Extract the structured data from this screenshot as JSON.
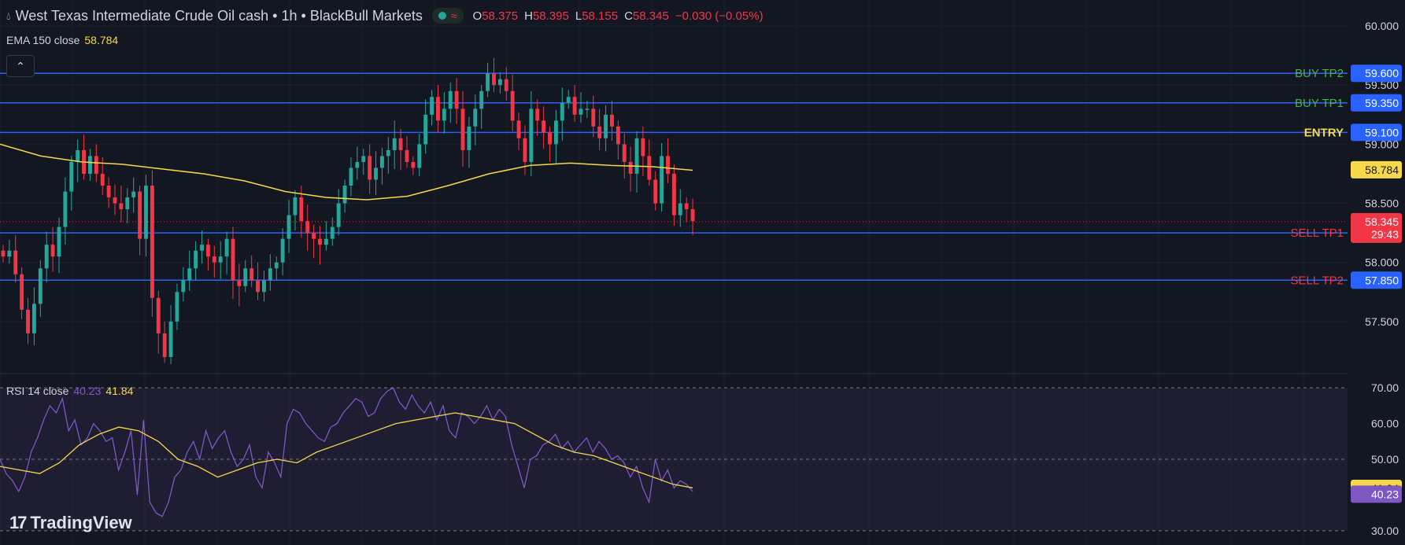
{
  "header": {
    "symbol": "West Texas Intermediate Crude Oil cash",
    "interval": "1h",
    "broker": "BlackBull Markets",
    "separator": "•",
    "ohlc": {
      "o_label": "O",
      "o": "58.375",
      "h_label": "H",
      "h": "58.395",
      "l_label": "L",
      "l": "58.155",
      "c_label": "C",
      "c": "58.345",
      "change": "−0.030 (−0.05%)"
    }
  },
  "ema": {
    "label": "EMA 150 close",
    "value": "58.784"
  },
  "rsi": {
    "label": "RSI 14 close",
    "value": "40.23",
    "ma_value": "41.84"
  },
  "logo": {
    "text": "TradingView"
  },
  "colors": {
    "bg": "#131722",
    "up": "#26a69a",
    "down": "#f23645",
    "level": "#2962ff",
    "ema": "#f7d84a",
    "rsi": "#7e57c2",
    "buy_text": "#4caf50",
    "entry_text": "#f7d84a",
    "sell_text": "#f23645"
  },
  "chart_data": {
    "type": "candlestick",
    "ylim": [
      57.06,
      60.22
    ],
    "y_ticks": [
      "60.000",
      "59.500",
      "59.000",
      "58.500",
      "58.000",
      "57.500"
    ],
    "current_price": {
      "value": "58.345",
      "countdown": "29:43"
    },
    "levels": [
      {
        "label": "BUY TP2",
        "price": "59.600",
        "kind": "buy"
      },
      {
        "label": "BUY TP1",
        "price": "59.350",
        "kind": "buy"
      },
      {
        "label": "ENTRY",
        "price": "59.100",
        "kind": "entry"
      },
      {
        "label": "SELL TP1",
        "price": "58.250",
        "kind": "sell"
      },
      {
        "label": "SELL TP2",
        "price": "57.850",
        "kind": "sell"
      }
    ],
    "closes": [
      58.05,
      58.1,
      57.9,
      57.6,
      57.4,
      57.65,
      57.95,
      58.15,
      58.05,
      58.3,
      58.6,
      58.85,
      58.95,
      58.75,
      58.9,
      58.75,
      58.65,
      58.55,
      58.5,
      58.45,
      58.55,
      58.6,
      58.2,
      58.65,
      57.7,
      57.4,
      57.2,
      57.5,
      57.75,
      57.85,
      57.95,
      58.1,
      58.15,
      58.05,
      58.0,
      58.05,
      58.2,
      57.85,
      57.8,
      57.95,
      57.85,
      57.75,
      57.85,
      57.95,
      58.0,
      58.2,
      58.4,
      58.55,
      58.35,
      58.25,
      58.2,
      58.15,
      58.2,
      58.3,
      58.5,
      58.65,
      58.8,
      58.85,
      58.9,
      58.7,
      58.8,
      58.9,
      58.95,
      59.05,
      58.95,
      58.85,
      58.8,
      59.0,
      59.25,
      59.4,
      59.2,
      59.3,
      59.45,
      59.3,
      58.95,
      59.15,
      59.3,
      59.45,
      59.6,
      59.5,
      59.55,
      59.45,
      59.2,
      59.05,
      58.85,
      59.3,
      59.2,
      59.1,
      59.0,
      59.2,
      59.35,
      59.4,
      59.25,
      59.3,
      59.3,
      59.15,
      59.05,
      59.25,
      59.15,
      59.0,
      58.85,
      58.75,
      59.05,
      58.9,
      58.7,
      58.5,
      58.9,
      58.75,
      58.4,
      58.5,
      58.45,
      58.35
    ],
    "ema_values": [
      59.0,
      58.9,
      58.85,
      58.83,
      58.79,
      58.75,
      58.69,
      58.6,
      58.55,
      58.53,
      58.56,
      58.65,
      58.75,
      58.82,
      58.84,
      58.82,
      58.81,
      58.78
    ],
    "rsi": {
      "ylim": [
        26,
        74
      ],
      "y_ticks": [
        "70.00",
        "60.00",
        "50.00",
        "30.00"
      ],
      "bands": [
        70,
        50,
        30
      ],
      "values": [
        50,
        46,
        44,
        41,
        45,
        52,
        56,
        61,
        65,
        63,
        67,
        58,
        61,
        54,
        56,
        60,
        58,
        55,
        56,
        47,
        52,
        58,
        40,
        61,
        38,
        35,
        34,
        38,
        45,
        47,
        52,
        55,
        50,
        58,
        53,
        56,
        58,
        52,
        48,
        50,
        54,
        45,
        42,
        52,
        49,
        45,
        60,
        64,
        63,
        60,
        58,
        56,
        55,
        59,
        60,
        63,
        65,
        67,
        66,
        62,
        63,
        67,
        69,
        70,
        66,
        64,
        68,
        65,
        63,
        66,
        61,
        65,
        58,
        56,
        63,
        62,
        60,
        62,
        65,
        61,
        64,
        62,
        54,
        48,
        42,
        50,
        51,
        54,
        55,
        57,
        53,
        55,
        52,
        54,
        56,
        52,
        55,
        53,
        50,
        51,
        49,
        45,
        48,
        42,
        38,
        50,
        44,
        47,
        42,
        44,
        43,
        41
      ],
      "ma_values": [
        48,
        47,
        46,
        49,
        54,
        57,
        59,
        58,
        55,
        50,
        48,
        45,
        47,
        49,
        50,
        49,
        52,
        54,
        56,
        58,
        60,
        61,
        62,
        63,
        62,
        61,
        60,
        57,
        54,
        52,
        51,
        49,
        47,
        45,
        43,
        42
      ]
    }
  }
}
